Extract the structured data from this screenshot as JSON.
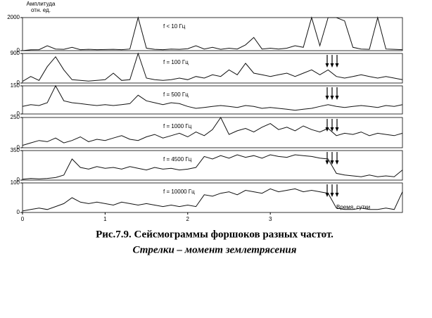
{
  "chart_data": [
    {
      "type": "line",
      "label": "f < 10 Гц",
      "ylabel": "Амплитуда отн. ед.",
      "xlim": [
        0,
        4.6
      ],
      "ylim": [
        0,
        2000
      ],
      "yticks": [
        0,
        2000
      ],
      "x": [
        0,
        0.1,
        0.2,
        0.3,
        0.4,
        0.5,
        0.6,
        0.7,
        0.8,
        0.9,
        1,
        1.1,
        1.2,
        1.3,
        1.4,
        1.5,
        1.6,
        1.7,
        1.8,
        1.9,
        2,
        2.1,
        2.2,
        2.3,
        2.4,
        2.5,
        2.6,
        2.7,
        2.8,
        2.9,
        3,
        3.1,
        3.2,
        3.3,
        3.4,
        3.5,
        3.6,
        3.7,
        3.8,
        3.9,
        4,
        4.1,
        4.2,
        4.3,
        4.4,
        4.5,
        4.6
      ],
      "values": [
        0,
        50,
        60,
        300,
        100,
        80,
        200,
        60,
        80,
        60,
        70,
        80,
        60,
        100,
        2000,
        150,
        80,
        60,
        100,
        80,
        120,
        300,
        100,
        200,
        80,
        150,
        100,
        350,
        800,
        100,
        150,
        100,
        150,
        300,
        200,
        2000,
        300,
        2000,
        2000,
        1800,
        200,
        100,
        80,
        2000,
        100,
        80,
        60
      ]
    },
    {
      "type": "line",
      "label": "f = 100 Гц",
      "xlim": [
        0,
        4.6
      ],
      "ylim": [
        0,
        900
      ],
      "yticks": [
        0,
        900
      ],
      "x": [
        0,
        0.1,
        0.2,
        0.3,
        0.4,
        0.5,
        0.6,
        0.7,
        0.8,
        0.9,
        1,
        1.1,
        1.2,
        1.3,
        1.4,
        1.5,
        1.6,
        1.7,
        1.8,
        1.9,
        2,
        2.1,
        2.2,
        2.3,
        2.4,
        2.5,
        2.6,
        2.7,
        2.8,
        2.9,
        3,
        3.1,
        3.2,
        3.3,
        3.4,
        3.5,
        3.6,
        3.7,
        3.8,
        3.9,
        4,
        4.1,
        4.2,
        4.3,
        4.4,
        4.5,
        4.6
      ],
      "values": [
        50,
        200,
        80,
        500,
        800,
        400,
        100,
        80,
        60,
        80,
        100,
        300,
        80,
        100,
        900,
        150,
        100,
        80,
        100,
        150,
        100,
        200,
        150,
        250,
        200,
        400,
        250,
        600,
        300,
        250,
        200,
        250,
        300,
        200,
        300,
        400,
        250,
        400,
        200,
        150,
        200,
        250,
        200,
        150,
        200,
        150,
        100
      ]
    },
    {
      "type": "line",
      "label": "f = 500 Гц",
      "xlim": [
        0,
        4.6
      ],
      "ylim": [
        0,
        150
      ],
      "yticks": [
        0,
        150
      ],
      "x": [
        0,
        0.1,
        0.2,
        0.3,
        0.4,
        0.5,
        0.6,
        0.7,
        0.8,
        0.9,
        1,
        1.1,
        1.2,
        1.3,
        1.4,
        1.5,
        1.6,
        1.7,
        1.8,
        1.9,
        2,
        2.1,
        2.2,
        2.3,
        2.4,
        2.5,
        2.6,
        2.7,
        2.8,
        2.9,
        3,
        3.1,
        3.2,
        3.3,
        3.4,
        3.5,
        3.6,
        3.7,
        3.8,
        3.9,
        4,
        4.1,
        4.2,
        4.3,
        4.4,
        4.5,
        4.6
      ],
      "values": [
        40,
        50,
        45,
        60,
        150,
        70,
        60,
        55,
        50,
        45,
        50,
        45,
        50,
        55,
        100,
        70,
        60,
        50,
        60,
        55,
        40,
        30,
        35,
        40,
        45,
        40,
        35,
        45,
        40,
        30,
        35,
        30,
        25,
        20,
        25,
        30,
        40,
        50,
        40,
        35,
        40,
        45,
        40,
        35,
        45,
        40,
        50
      ]
    },
    {
      "type": "line",
      "label": "f = 1000 Гц",
      "xlim": [
        0,
        4.6
      ],
      "ylim": [
        0,
        250
      ],
      "yticks": [
        0,
        250
      ],
      "x": [
        0,
        0.1,
        0.2,
        0.3,
        0.4,
        0.5,
        0.6,
        0.7,
        0.8,
        0.9,
        1,
        1.1,
        1.2,
        1.3,
        1.4,
        1.5,
        1.6,
        1.7,
        1.8,
        1.9,
        2,
        2.1,
        2.2,
        2.3,
        2.4,
        2.5,
        2.6,
        2.7,
        2.8,
        2.9,
        3,
        3.1,
        3.2,
        3.3,
        3.4,
        3.5,
        3.6,
        3.7,
        3.8,
        3.9,
        4,
        4.1,
        4.2,
        4.3,
        4.4,
        4.5,
        4.6
      ],
      "values": [
        20,
        40,
        60,
        50,
        80,
        40,
        60,
        90,
        50,
        70,
        60,
        80,
        100,
        70,
        60,
        90,
        110,
        80,
        100,
        120,
        90,
        130,
        100,
        150,
        250,
        110,
        140,
        160,
        130,
        170,
        200,
        150,
        170,
        140,
        180,
        150,
        130,
        160,
        100,
        120,
        110,
        130,
        100,
        120,
        110,
        100,
        120
      ]
    },
    {
      "type": "line",
      "label": "f = 4500 Гц",
      "xlim": [
        0,
        4.6
      ],
      "ylim": [
        0,
        350
      ],
      "yticks": [
        0,
        350
      ],
      "x": [
        0,
        0.1,
        0.2,
        0.3,
        0.4,
        0.5,
        0.6,
        0.7,
        0.8,
        0.9,
        1,
        1.1,
        1.2,
        1.3,
        1.4,
        1.5,
        1.6,
        1.7,
        1.8,
        1.9,
        2,
        2.1,
        2.2,
        2.3,
        2.4,
        2.5,
        2.6,
        2.7,
        2.8,
        2.9,
        3,
        3.1,
        3.2,
        3.3,
        3.4,
        3.5,
        3.6,
        3.7,
        3.8,
        3.9,
        4,
        4.1,
        4.2,
        4.3,
        4.4,
        4.5,
        4.6
      ],
      "values": [
        10,
        20,
        15,
        20,
        30,
        60,
        250,
        150,
        130,
        160,
        140,
        150,
        130,
        160,
        140,
        120,
        150,
        130,
        140,
        120,
        130,
        150,
        280,
        250,
        290,
        260,
        300,
        270,
        290,
        260,
        300,
        280,
        270,
        300,
        290,
        280,
        260,
        250,
        80,
        60,
        50,
        40,
        60,
        40,
        50,
        40,
        120
      ]
    },
    {
      "type": "line",
      "label": "f = 10000 Гц",
      "xlabel": "Время, сутки",
      "xlim": [
        0,
        4.6
      ],
      "xticks": [
        0,
        1,
        2,
        3
      ],
      "ylim": [
        0,
        100
      ],
      "yticks": [
        0,
        100
      ],
      "x": [
        0,
        0.1,
        0.2,
        0.3,
        0.4,
        0.5,
        0.6,
        0.7,
        0.8,
        0.9,
        1,
        1.1,
        1.2,
        1.3,
        1.4,
        1.5,
        1.6,
        1.7,
        1.8,
        1.9,
        2,
        2.1,
        2.2,
        2.3,
        2.4,
        2.5,
        2.6,
        2.7,
        2.8,
        2.9,
        3,
        3.1,
        3.2,
        3.3,
        3.4,
        3.5,
        3.6,
        3.7,
        3.8,
        3.9,
        4,
        4.1,
        4.2,
        4.3,
        4.4,
        4.5,
        4.6
      ],
      "values": [
        5,
        10,
        15,
        10,
        20,
        30,
        50,
        35,
        30,
        35,
        30,
        25,
        35,
        30,
        25,
        30,
        25,
        20,
        25,
        20,
        25,
        20,
        60,
        55,
        65,
        70,
        60,
        75,
        70,
        65,
        80,
        70,
        75,
        80,
        70,
        75,
        70,
        65,
        15,
        10,
        10,
        15,
        10,
        10,
        15,
        10,
        70
      ]
    }
  ],
  "caption": {
    "title": "Рис.7.9. Сейсмограммы форшоков разных частот.",
    "subtitle": "Стрелки – момент землетрясения"
  }
}
